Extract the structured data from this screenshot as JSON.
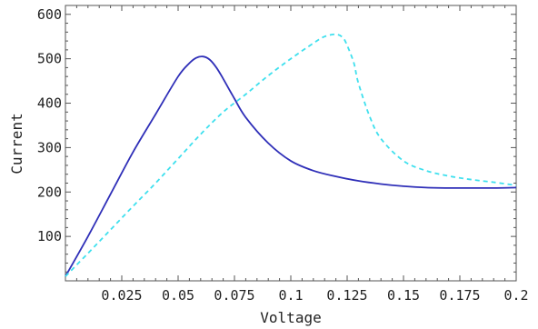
{
  "chart_data": {
    "type": "line",
    "title": "",
    "xlabel": "Voltage",
    "ylabel": "Current",
    "xlim": [
      0,
      0.2
    ],
    "ylim": [
      0,
      620
    ],
    "x_ticks": [
      {
        "value": 0.025,
        "label": "0.025"
      },
      {
        "value": 0.05,
        "label": "0.05"
      },
      {
        "value": 0.075,
        "label": "0.075"
      },
      {
        "value": 0.1,
        "label": "0.1"
      },
      {
        "value": 0.125,
        "label": "0.125"
      },
      {
        "value": 0.15,
        "label": "0.15"
      },
      {
        "value": 0.175,
        "label": "0.175"
      },
      {
        "value": 0.2,
        "label": "0.2"
      }
    ],
    "y_ticks": [
      {
        "value": 100,
        "label": "100"
      },
      {
        "value": 200,
        "label": "200"
      },
      {
        "value": 300,
        "label": "300"
      },
      {
        "value": 400,
        "label": "400"
      },
      {
        "value": 500,
        "label": "500"
      },
      {
        "value": 600,
        "label": "600"
      }
    ],
    "grid": false,
    "frame_ticks": true,
    "series": [
      {
        "color": "#2f2fb8",
        "dash": "solid",
        "x": [
          0.0,
          0.01,
          0.02,
          0.03,
          0.04,
          0.05,
          0.055,
          0.058,
          0.061,
          0.064,
          0.067,
          0.07,
          0.075,
          0.08,
          0.09,
          0.1,
          0.11,
          0.12,
          0.13,
          0.14,
          0.15,
          0.16,
          0.17,
          0.18,
          0.19,
          0.2
        ],
        "y": [
          10,
          100,
          195,
          290,
          375,
          460,
          490,
          502,
          505,
          498,
          480,
          455,
          410,
          368,
          310,
          270,
          248,
          235,
          225,
          218,
          213,
          210,
          209,
          209,
          209,
          210
        ]
      },
      {
        "color": "#3fe0ee",
        "dash": "dashed",
        "x": [
          0.0,
          0.01,
          0.02,
          0.03,
          0.04,
          0.05,
          0.06,
          0.07,
          0.08,
          0.09,
          0.1,
          0.11,
          0.115,
          0.12,
          0.123,
          0.125,
          0.128,
          0.13,
          0.135,
          0.14,
          0.15,
          0.16,
          0.17,
          0.18,
          0.19,
          0.2
        ],
        "y": [
          10,
          62,
          115,
          168,
          220,
          275,
          330,
          380,
          420,
          462,
          500,
          535,
          550,
          555,
          548,
          530,
          490,
          445,
          370,
          320,
          270,
          248,
          236,
          228,
          222,
          215
        ]
      }
    ]
  }
}
